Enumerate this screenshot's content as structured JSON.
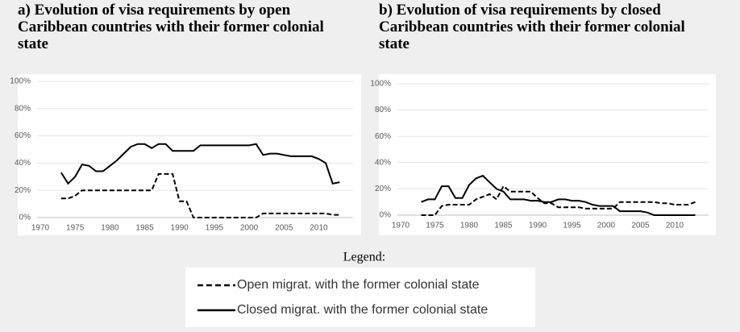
{
  "chart_data": [
    {
      "type": "line",
      "title": "a) Evolution of visa requirements by open Caribbean countries with their former colonial state",
      "x": [
        1973,
        1974,
        1975,
        1976,
        1977,
        1978,
        1979,
        1980,
        1981,
        1982,
        1983,
        1984,
        1985,
        1986,
        1987,
        1988,
        1989,
        1990,
        1991,
        1992,
        1993,
        1994,
        1995,
        1996,
        1997,
        1998,
        1999,
        2000,
        2001,
        2002,
        2003,
        2004,
        2005,
        2006,
        2007,
        2008,
        2009,
        2010,
        2011,
        2012,
        2013
      ],
      "series": [
        {
          "style": "dashed",
          "color": "#000000",
          "values": [
            14,
            14,
            16,
            20,
            20,
            20,
            20,
            20,
            20,
            20,
            20,
            20,
            20,
            20,
            32,
            32,
            32,
            12,
            12,
            0,
            0,
            0,
            0,
            0,
            0,
            0,
            0,
            0,
            0,
            3,
            3,
            3,
            3,
            3,
            3,
            3,
            3,
            3,
            3,
            2,
            2
          ]
        },
        {
          "style": "solid",
          "color": "#000000",
          "values": [
            33,
            25,
            30,
            39,
            38,
            34,
            34,
            38,
            42,
            47,
            52,
            54,
            54,
            51,
            54,
            54,
            49,
            49,
            49,
            49,
            53,
            53,
            53,
            53,
            53,
            53,
            53,
            53,
            54,
            46,
            47,
            47,
            46,
            45,
            45,
            45,
            45,
            43,
            40,
            25,
            26
          ]
        }
      ],
      "xlim": [
        1970,
        2014
      ],
      "xticks": [
        1970,
        1975,
        1980,
        1985,
        1990,
        1995,
        2000,
        2005,
        2010
      ],
      "ylim": [
        0,
        100
      ],
      "yticks": [
        {
          "value": 0,
          "label": "0%"
        },
        {
          "value": 20,
          "label": "20%"
        },
        {
          "value": 40,
          "label": "40%"
        },
        {
          "value": 60,
          "label": "60%"
        },
        {
          "value": 80,
          "label": "80%"
        },
        {
          "value": 100,
          "label": "100%"
        }
      ],
      "grid": true
    },
    {
      "type": "line",
      "title": "b) Evolution of visa requirements by closed Caribbean countries with their former colonial state",
      "x": [
        1973,
        1974,
        1975,
        1976,
        1977,
        1978,
        1979,
        1980,
        1981,
        1982,
        1983,
        1984,
        1985,
        1986,
        1987,
        1988,
        1989,
        1990,
        1991,
        1992,
        1993,
        1994,
        1995,
        1996,
        1997,
        1998,
        1999,
        2000,
        2001,
        2002,
        2003,
        2004,
        2005,
        2006,
        2007,
        2008,
        2009,
        2010,
        2011,
        2012,
        2013
      ],
      "series": [
        {
          "style": "dashed",
          "color": "#000000",
          "values": [
            0,
            0,
            0,
            7,
            8,
            8,
            8,
            8,
            12,
            14,
            16,
            12,
            22,
            18,
            18,
            18,
            18,
            13,
            9,
            9,
            6,
            6,
            6,
            6,
            5,
            5,
            5,
            5,
            5,
            10,
            10,
            10,
            10,
            10,
            10,
            9,
            9,
            8,
            8,
            8,
            10
          ]
        },
        {
          "style": "solid",
          "color": "#000000",
          "values": [
            10,
            12,
            12,
            22,
            22,
            13,
            13,
            23,
            28,
            30,
            25,
            20,
            18,
            12,
            12,
            12,
            11,
            11,
            10,
            10,
            12,
            12,
            11,
            11,
            10,
            8,
            7,
            7,
            7,
            3,
            3,
            3,
            3,
            2,
            0,
            0,
            0,
            0,
            0,
            0,
            0
          ]
        }
      ],
      "xlim": [
        1970,
        2014
      ],
      "xticks": [
        1970,
        1975,
        1980,
        1985,
        1990,
        1995,
        2000,
        2005,
        2010
      ],
      "ylim": [
        0,
        100
      ],
      "yticks": [
        {
          "value": 0,
          "label": "0%"
        },
        {
          "value": 20,
          "label": "20%"
        },
        {
          "value": 40,
          "label": "40%"
        },
        {
          "value": 60,
          "label": "60%"
        },
        {
          "value": 80,
          "label": "80%"
        },
        {
          "value": 100,
          "label": "100%"
        }
      ],
      "grid": true
    }
  ],
  "legend": {
    "title": "Legend:",
    "entries": [
      {
        "style": "dashed",
        "label": "Open migrat. with the former colonial state"
      },
      {
        "style": "solid",
        "label": "Closed migrat. with the former colonial state"
      }
    ]
  }
}
